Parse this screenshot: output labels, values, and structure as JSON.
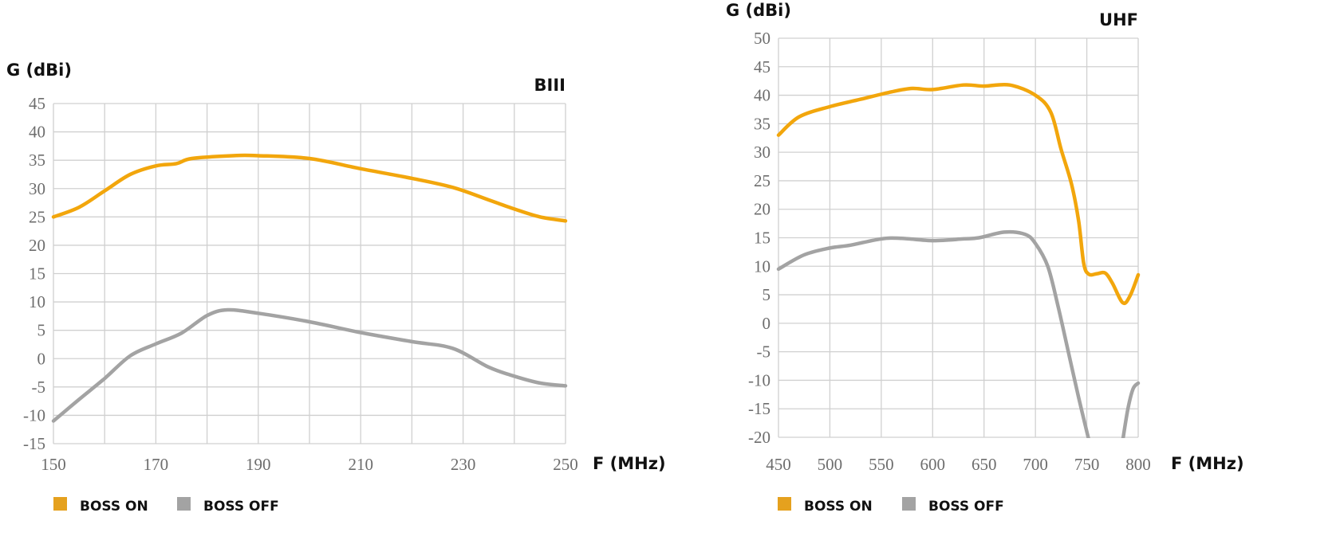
{
  "chart_data": [
    {
      "type": "line",
      "title": "BIII",
      "xlabel": "F (MHz)",
      "ylabel": "G (dBi)",
      "xlim": [
        150,
        250
      ],
      "ylim": [
        -15,
        45
      ],
      "xticks": [
        150,
        170,
        190,
        210,
        230,
        250
      ],
      "xgrid_step": 10,
      "yticks": [
        45,
        40,
        35,
        30,
        25,
        20,
        15,
        10,
        5,
        0,
        -5,
        -10,
        -15
      ],
      "grid": true,
      "legend_position": "bottom-left",
      "series": [
        {
          "name": "BOSS ON",
          "color": "#F2A60C",
          "x": [
            150,
            155,
            160,
            165,
            170,
            174,
            177,
            185,
            190,
            200,
            210,
            220,
            228,
            235,
            240,
            245,
            250
          ],
          "y": [
            25,
            26.7,
            29.6,
            32.5,
            34,
            34.4,
            35.3,
            35.8,
            35.8,
            35.3,
            33.5,
            31.8,
            30.2,
            28,
            26.4,
            25,
            24.3
          ]
        },
        {
          "name": "BOSS OFF",
          "color": "#A3A3A3",
          "x": [
            150,
            155,
            160,
            165,
            170,
            175,
            180,
            184,
            190,
            200,
            210,
            220,
            228,
            235,
            240,
            245,
            250
          ],
          "y": [
            -11,
            -7.2,
            -3.5,
            0.5,
            2.6,
            4.5,
            7.6,
            8.6,
            8,
            6.5,
            4.6,
            3,
            1.8,
            -1.5,
            -3.1,
            -4.3,
            -4.8
          ]
        }
      ]
    },
    {
      "type": "line",
      "title": "UHF",
      "xlabel": "F (MHz)",
      "ylabel": "G (dBi)",
      "xlim": [
        450,
        800
      ],
      "ylim": [
        -20,
        50
      ],
      "xticks": [
        450,
        500,
        550,
        600,
        650,
        700,
        750,
        800
      ],
      "xgrid_step": 50,
      "yticks": [
        50,
        45,
        40,
        35,
        30,
        25,
        20,
        15,
        10,
        5,
        0,
        -5,
        -10,
        -15,
        -20
      ],
      "grid": true,
      "legend_position": "bottom-left",
      "series": [
        {
          "name": "BOSS ON",
          "color": "#F2A60C",
          "x": [
            450,
            470,
            500,
            530,
            560,
            580,
            600,
            630,
            650,
            675,
            700,
            715,
            725,
            735,
            742,
            747,
            752,
            760,
            768,
            775,
            785,
            792,
            800
          ],
          "y": [
            33,
            36.2,
            38,
            39.3,
            40.6,
            41.2,
            41,
            41.8,
            41.6,
            41.8,
            40,
            37,
            30.5,
            24.5,
            18,
            10.5,
            8.6,
            8.7,
            8.8,
            7,
            3.6,
            4.8,
            8.5
          ]
        },
        {
          "name": "BOSS OFF",
          "color": "#A3A3A3",
          "x": [
            450,
            475,
            500,
            520,
            550,
            570,
            600,
            630,
            645,
            670,
            690,
            700,
            712,
            722,
            732,
            742,
            752,
            null,
            785,
            790,
            795,
            800
          ],
          "y": [
            9.5,
            12,
            13.2,
            13.7,
            14.8,
            14.9,
            14.5,
            14.8,
            15,
            16,
            15.6,
            14,
            10,
            3,
            -5,
            -13,
            -20.5,
            null,
            -20.5,
            -15,
            -11.5,
            -10.5
          ]
        }
      ]
    }
  ],
  "legend": [
    "BOSS ON",
    "BOSS OFF"
  ]
}
